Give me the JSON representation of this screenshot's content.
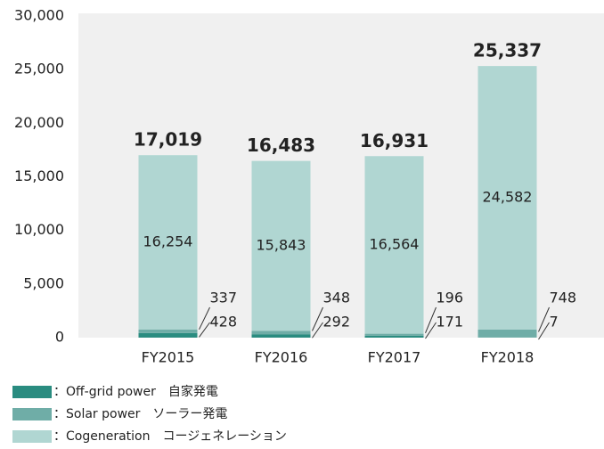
{
  "chart_data": {
    "type": "stacked_bar",
    "categories": [
      "FY2015",
      "FY2016",
      "FY2017",
      "FY2018"
    ],
    "series": [
      {
        "name": "：Off-grid power　自家発電",
        "color": "#2a8c80",
        "values": [
          428,
          292,
          171,
          7
        ],
        "value_labels": [
          "428",
          "292",
          "171",
          "7"
        ]
      },
      {
        "name": "：Solar power　ソーラー発電",
        "color": "#6fada7",
        "values": [
          337,
          348,
          196,
          748
        ],
        "value_labels": [
          "337",
          "348",
          "196",
          "748"
        ]
      },
      {
        "name": "：Cogeneration　コージェネレーション",
        "color": "#b0d6d2",
        "values": [
          16254,
          15843,
          16564,
          24582
        ],
        "value_labels": [
          "16,254",
          "15,843",
          "16,564",
          "24,582"
        ]
      }
    ],
    "totals": [
      17019,
      16483,
      16931,
      25337
    ],
    "totals_labels": [
      "17,019",
      "16,483",
      "16,931",
      "25,337"
    ],
    "ylim": [
      0,
      30000
    ],
    "yticks": [
      0,
      {
        "value": 5000,
        "label": "5,000"
      },
      {
        "value": 10000,
        "label": "10,000"
      },
      {
        "value": 15000,
        "label": "15,000"
      },
      {
        "value": 20000,
        "label": "20,000"
      },
      {
        "value": 25000,
        "label": "25,000"
      },
      {
        "value": 30000,
        "label": "30,000"
      }
    ],
    "grid": false
  }
}
